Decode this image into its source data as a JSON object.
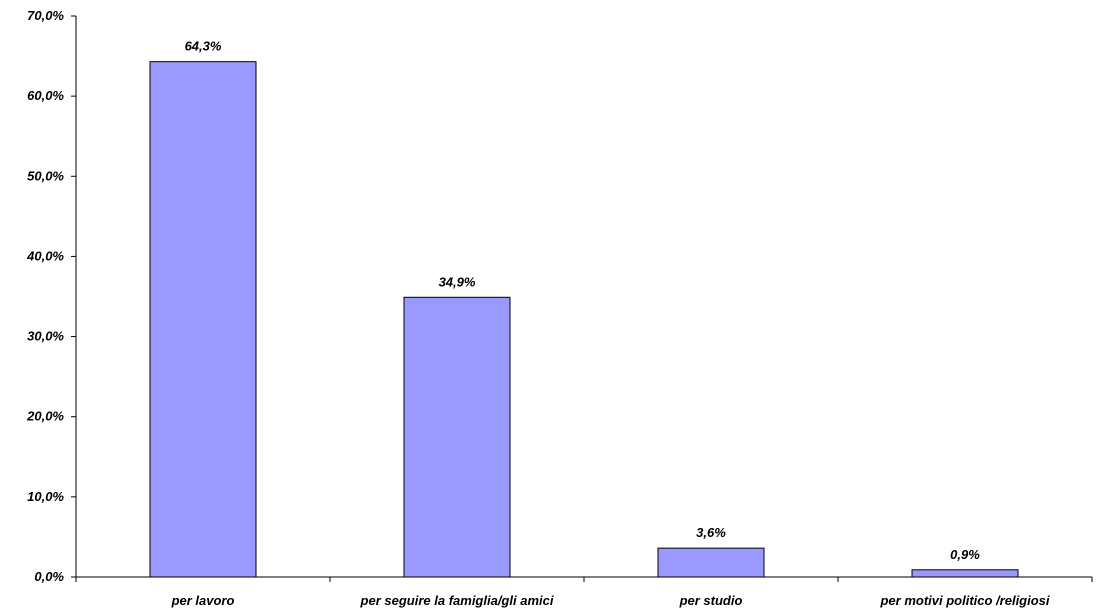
{
  "chart_data": {
    "type": "bar",
    "categories": [
      "per lavoro",
      "per seguire la famiglia/gli amici",
      "per studio",
      "per motivi politico /religiosi"
    ],
    "values": [
      64.3,
      34.9,
      3.6,
      0.9
    ],
    "value_labels": [
      "64,3%",
      "34,9%",
      "3,6%",
      "0,9%"
    ],
    "ylim": [
      0,
      70
    ],
    "yticks": [
      0,
      10,
      20,
      30,
      40,
      50,
      60,
      70
    ],
    "ytick_labels": [
      "0,0%",
      "10,0%",
      "20,0%",
      "30,0%",
      "40,0%",
      "50,0%",
      "60,0%",
      "70,0%"
    ],
    "title": "",
    "xlabel": "",
    "ylabel": "",
    "grid": false,
    "legend": "none",
    "colors": {
      "bar_fill": "#9999ff",
      "bar_stroke": "#000000",
      "axis": "#000000",
      "background": "#ffffff"
    }
  }
}
